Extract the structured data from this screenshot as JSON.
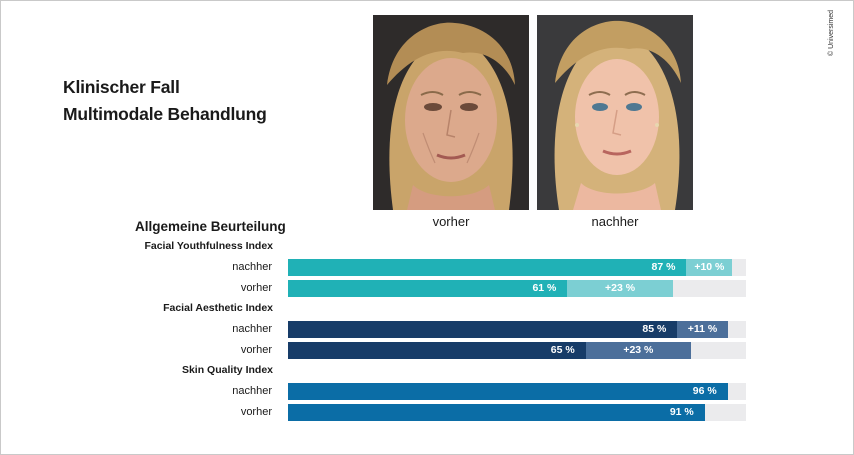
{
  "title": {
    "line1": "Klinischer Fall",
    "line2": "Multimodale Behandlung"
  },
  "credit": "© Universimed",
  "photos": {
    "before": {
      "caption": "vorher"
    },
    "after": {
      "caption": "nachher"
    }
  },
  "colors": {
    "track": "#ebebed",
    "teal_base": "#20b1b6",
    "teal_gain": "#7ccfd3",
    "navy_base": "#173c68",
    "navy_gain": "#4c6f9a",
    "blue_base": "#0b6da6"
  },
  "chart_data": {
    "type": "bar",
    "orientation": "horizontal",
    "stacked": true,
    "title": "Allgemeine Beurteilung",
    "xlim": [
      0,
      100
    ],
    "unit": "%",
    "groups": [
      {
        "name": "Facial Youthfulness Index",
        "base_color": "#20b1b6",
        "gain_color": "#7ccfd3",
        "rows": [
          {
            "label": "nachher",
            "value": 87,
            "value_label": "87 %",
            "gain": 10,
            "gain_label": "+10 %"
          },
          {
            "label": "vorher",
            "value": 61,
            "value_label": "61 %",
            "gain": 23,
            "gain_label": "+23 %"
          }
        ]
      },
      {
        "name": "Facial Aesthetic Index",
        "base_color": "#173c68",
        "gain_color": "#4c6f9a",
        "rows": [
          {
            "label": "nachher",
            "value": 85,
            "value_label": "85 %",
            "gain": 11,
            "gain_label": "+11 %"
          },
          {
            "label": "vorher",
            "value": 65,
            "value_label": "65 %",
            "gain": 23,
            "gain_label": "+23 %"
          }
        ]
      },
      {
        "name": "Skin Quality Index",
        "base_color": "#0b6da6",
        "gain_color": "#0b6da6",
        "rows": [
          {
            "label": "nachher",
            "value": 96,
            "value_label": "96 %",
            "gain": 0,
            "gain_label": ""
          },
          {
            "label": "vorher",
            "value": 91,
            "value_label": "91 %",
            "gain": 0,
            "gain_label": ""
          }
        ]
      }
    ]
  }
}
